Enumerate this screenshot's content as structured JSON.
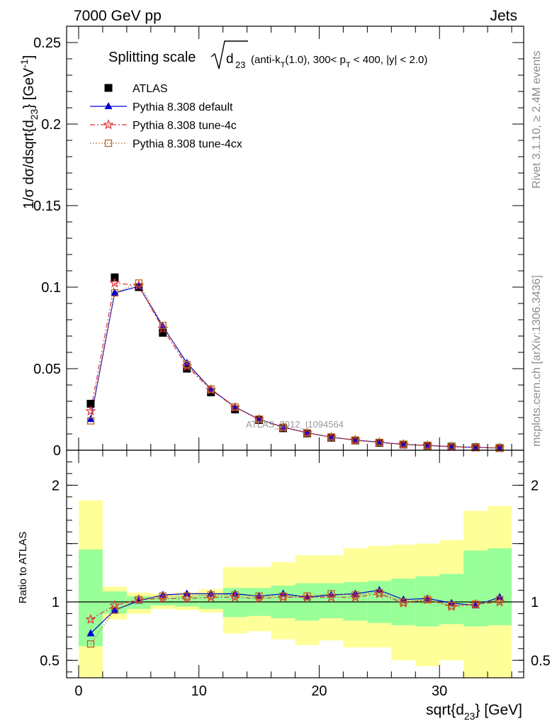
{
  "header": {
    "energy_label": "7000 GeV pp",
    "category_label": "Jets",
    "title_prefix": "Splitting scale",
    "title_var": "d",
    "title_var_sub": "23",
    "title_cuts": "(anti-k",
    "title_cuts_sub": "T",
    "title_cuts_mid": "(1.0), 300< p",
    "title_cuts_sub2": "T",
    "title_cuts_end": " < 400, |y| < 2.0)"
  },
  "side_labels": {
    "rivet": "Rivet 3.1.10, ≥ 2.4M events",
    "mcplots": "mcplots.cern.ch [arXiv:1306.3436]"
  },
  "watermark": "ATLAS_2012_I1094564",
  "colors": {
    "atlas": "#000000",
    "default": "#0000cc",
    "tune4c": "#dd3333",
    "tune4cx": "#bb6622",
    "band_inner": "#99ff99",
    "band_outer": "#ffff99"
  },
  "chart_data": [
    {
      "type": "line",
      "panel": "main",
      "ylabel": "1/σ dσ/dsqrt{d23} [GeV-1]",
      "ylabel_parts": {
        "a": "1/σ dσ/dsqrt{d",
        "sub": "23",
        "b": "} [GeV",
        "sup": "-1",
        "c": "]"
      },
      "xlim": [
        -1,
        37
      ],
      "ylim": [
        0,
        0.26
      ],
      "yticks": [
        0,
        0.05,
        0.1,
        0.15,
        0.2,
        0.25
      ],
      "ytick_labels": [
        "0",
        "0.05",
        "0.1",
        "0.15",
        "0.2",
        "0.25"
      ],
      "legend_position": "top-left",
      "x": [
        1,
        3,
        5,
        7,
        9,
        11,
        13,
        15,
        17,
        19,
        21,
        23,
        25,
        27,
        29,
        31,
        33,
        35
      ],
      "series": [
        {
          "name": "ATLAS",
          "key": "atlas",
          "marker": "square",
          "values": [
            0.0285,
            0.106,
            0.1,
            0.072,
            0.05,
            0.0355,
            0.025,
            0.0185,
            0.0135,
            0.0103,
            0.0077,
            0.006,
            0.0045,
            0.0035,
            0.0028,
            0.0022,
            0.0018,
            0.0014
          ]
        },
        {
          "name": "Pythia 8.308 default",
          "key": "default",
          "marker": "triangle",
          "values": [
            0.019,
            0.0965,
            0.1005,
            0.076,
            0.0535,
            0.0375,
            0.0265,
            0.019,
            0.0142,
            0.0107,
            0.008,
            0.0062,
            0.0049,
            0.0036,
            0.0029,
            0.0022,
            0.0017,
            0.0014
          ]
        },
        {
          "name": "Pythia 8.308 tune-4c",
          "key": "tune4c",
          "marker": "star",
          "values": [
            0.024,
            0.1025,
            0.101,
            0.0745,
            0.0515,
            0.037,
            0.0262,
            0.0189,
            0.0139,
            0.0106,
            0.0079,
            0.0061,
            0.0047,
            0.0035,
            0.0028,
            0.0021,
            0.0017,
            0.0014
          ]
        },
        {
          "name": "Pythia 8.308 tune-4cx",
          "key": "tune4cx",
          "marker": "open-square",
          "values": [
            0.018,
            0.0965,
            0.1025,
            0.0765,
            0.0525,
            0.0375,
            0.0265,
            0.0191,
            0.0141,
            0.0106,
            0.0081,
            0.0061,
            0.0048,
            0.0036,
            0.0029,
            0.0021,
            0.0017,
            0.0014
          ]
        }
      ]
    },
    {
      "type": "line",
      "panel": "ratio",
      "ylabel": "Ratio to ATLAS",
      "xlabel": "sqrt{d23} [GeV]",
      "xlabel_parts": {
        "a": "sqrt{d",
        "sub": "23",
        "b": "} [GeV]"
      },
      "xlim": [
        -1,
        37
      ],
      "ylim": [
        0.35,
        2.3
      ],
      "xticks": [
        0,
        10,
        20,
        30
      ],
      "xtick_labels": [
        "0",
        "10",
        "20",
        "30"
      ],
      "yticks": [
        0.5,
        1,
        2
      ],
      "ytick_labels": [
        "0.5",
        "1",
        "2"
      ],
      "reference_line": 1,
      "bins": [
        [
          0,
          2
        ],
        [
          2,
          4
        ],
        [
          4,
          6
        ],
        [
          6,
          8
        ],
        [
          8,
          10
        ],
        [
          10,
          12
        ],
        [
          12,
          14
        ],
        [
          14,
          16
        ],
        [
          16,
          18
        ],
        [
          18,
          20
        ],
        [
          20,
          22
        ],
        [
          22,
          24
        ],
        [
          24,
          26
        ],
        [
          26,
          28
        ],
        [
          28,
          30
        ],
        [
          30,
          32
        ],
        [
          32,
          34
        ],
        [
          34,
          36
        ]
      ],
      "band_inner": [
        [
          0.62,
          1.45
        ],
        [
          0.9,
          1.09
        ],
        [
          0.94,
          1.05
        ],
        [
          0.97,
          1.04
        ],
        [
          0.96,
          1.05
        ],
        [
          0.94,
          1.06
        ],
        [
          0.87,
          1.12
        ],
        [
          0.88,
          1.12
        ],
        [
          0.86,
          1.14
        ],
        [
          0.84,
          1.16
        ],
        [
          0.86,
          1.16
        ],
        [
          0.84,
          1.17
        ],
        [
          0.82,
          1.18
        ],
        [
          0.8,
          1.2
        ],
        [
          0.79,
          1.22
        ],
        [
          0.81,
          1.24
        ],
        [
          0.79,
          1.44
        ],
        [
          0.8,
          1.46
        ]
      ],
      "band_outer": [
        [
          0.35,
          1.87
        ],
        [
          0.85,
          1.13
        ],
        [
          0.9,
          1.08
        ],
        [
          0.94,
          1.07
        ],
        [
          0.93,
          1.08
        ],
        [
          0.91,
          1.11
        ],
        [
          0.73,
          1.3
        ],
        [
          0.75,
          1.3
        ],
        [
          0.68,
          1.34
        ],
        [
          0.63,
          1.4
        ],
        [
          0.67,
          1.4
        ],
        [
          0.61,
          1.46
        ],
        [
          0.61,
          1.48
        ],
        [
          0.5,
          1.49
        ],
        [
          0.45,
          1.5
        ],
        [
          0.5,
          1.53
        ],
        [
          0.35,
          1.78
        ],
        [
          0.35,
          1.82
        ]
      ],
      "x": [
        1,
        3,
        5,
        7,
        9,
        11,
        13,
        15,
        17,
        19,
        21,
        23,
        25,
        27,
        29,
        31,
        33,
        35
      ],
      "series": [
        {
          "name": "Pythia 8.308 default",
          "key": "default",
          "marker": "triangle",
          "values": [
            0.73,
            0.93,
            1.01,
            1.06,
            1.07,
            1.07,
            1.07,
            1.05,
            1.07,
            1.04,
            1.06,
            1.07,
            1.1,
            1.02,
            1.03,
            0.99,
            0.97,
            1.04
          ]
        },
        {
          "name": "Pythia 8.308 tune-4c",
          "key": "tune4c",
          "marker": "star",
          "values": [
            0.85,
            0.97,
            1.02,
            1.03,
            1.03,
            1.04,
            1.04,
            1.03,
            1.04,
            1.04,
            1.04,
            1.04,
            1.07,
            0.99,
            1.02,
            0.96,
            0.98,
            1.0
          ]
        },
        {
          "name": "Pythia 8.308 tune-4cx",
          "key": "tune4cx",
          "marker": "open-square",
          "values": [
            0.64,
            0.93,
            1.02,
            1.05,
            1.05,
            1.06,
            1.06,
            1.05,
            1.05,
            1.05,
            1.07,
            1.06,
            1.08,
            1.0,
            1.02,
            0.97,
            0.98,
            1.02
          ]
        }
      ]
    }
  ]
}
